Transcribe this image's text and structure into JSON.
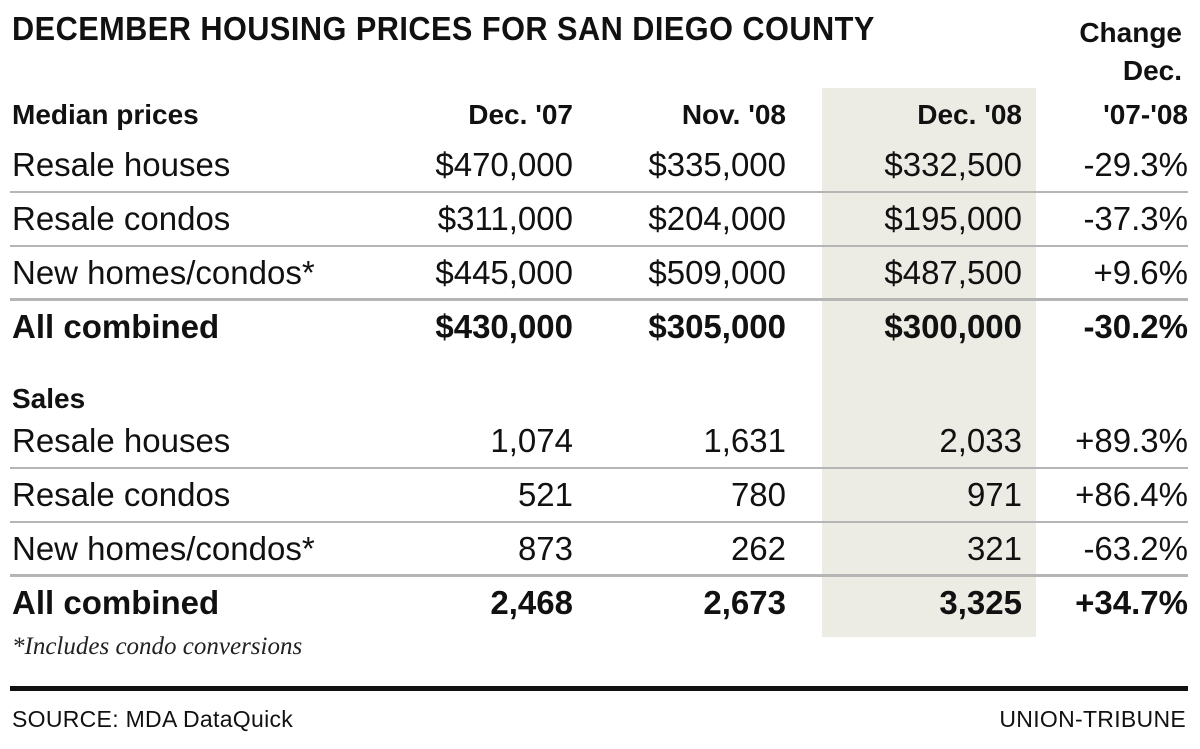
{
  "title": "DECEMBER HOUSING PRICES FOR SAN DIEGO COUNTY",
  "change_header": [
    "Change",
    "Dec.",
    "'07-'08"
  ],
  "columns": [
    "Dec. '07",
    "Nov. '08",
    "Dec. '08"
  ],
  "sections": [
    {
      "heading": "Median prices",
      "rows": [
        [
          "Resale houses",
          "$470,000",
          "$335,000",
          "$332,500",
          "-29.3%"
        ],
        [
          "Resale condos",
          "$311,000",
          "$204,000",
          "$195,000",
          "-37.3%"
        ],
        [
          "New homes/condos*",
          "$445,000",
          "$509,000",
          "$487,500",
          "+9.6%"
        ]
      ],
      "total": [
        "All combined",
        "$430,000",
        "$305,000",
        "$300,000",
        "-30.2%"
      ]
    },
    {
      "heading": "Sales",
      "rows": [
        [
          "Resale houses",
          "1,074",
          "1,631",
          "2,033",
          "+89.3%"
        ],
        [
          "Resale condos",
          "521",
          "780",
          "971",
          "+86.4%"
        ],
        [
          "New homes/condos*",
          "873",
          "262",
          "321",
          "-63.2%"
        ]
      ],
      "total": [
        "All combined",
        "2,468",
        "2,673",
        "3,325",
        "+34.7%"
      ]
    }
  ],
  "footnote": "*Includes condo conversions",
  "source": "SOURCE: MDA DataQuick",
  "credit": "UNION-TRIBUNE",
  "colors": {
    "highlight": "#ecebe4",
    "text": "#111111",
    "rule": "#b5b5b5"
  },
  "chart_data": {
    "type": "table",
    "title": "DECEMBER HOUSING PRICES FOR SAN DIEGO COUNTY",
    "columns": [
      "Dec. '07",
      "Nov. '08",
      "Dec. '08",
      "Change Dec. '07-'08"
    ],
    "median_prices": {
      "Resale houses": [
        470000,
        335000,
        332500,
        -29.3
      ],
      "Resale condos": [
        311000,
        204000,
        195000,
        -37.3
      ],
      "New homes/condos*": [
        445000,
        509000,
        487500,
        9.6
      ],
      "All combined": [
        430000,
        305000,
        300000,
        -30.2
      ]
    },
    "sales": {
      "Resale houses": [
        1074,
        1631,
        2033,
        89.3
      ],
      "Resale condos": [
        521,
        780,
        971,
        86.4
      ],
      "New homes/condos*": [
        873,
        262,
        321,
        -63.2
      ],
      "All combined": [
        2468,
        2673,
        3325,
        34.7
      ]
    }
  }
}
